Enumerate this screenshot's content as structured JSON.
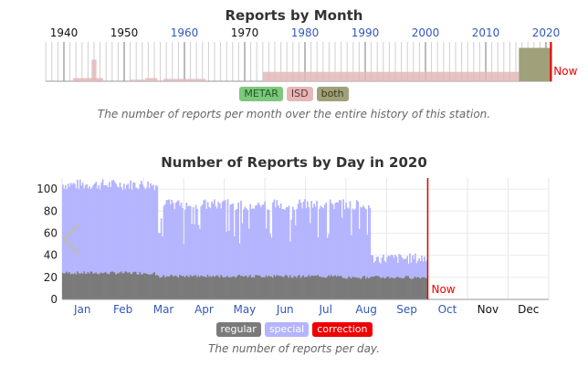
{
  "colors": {
    "metar": "#7ec87e",
    "isd": "#e4b8b8",
    "both": "#a0a07a",
    "regular": "#7a7a7a",
    "special": "#b4b4ff",
    "correction": "#ee0000",
    "now": "#ee0000",
    "month_link": "#3358b8",
    "month_plain": "#111111"
  },
  "chart_data": [
    {
      "type": "area",
      "title": "Reports by Month",
      "xlim": [
        1937,
        2021
      ],
      "year_ticks": [
        {
          "label": "1940",
          "year": 1940,
          "link": false
        },
        {
          "label": "1950",
          "year": 1950,
          "link": false
        },
        {
          "label": "1960",
          "year": 1960,
          "link": true
        },
        {
          "label": "1970",
          "year": 1970,
          "link": false
        },
        {
          "label": "1980",
          "year": 1980,
          "link": true
        },
        {
          "label": "1990",
          "year": 1990,
          "link": true
        },
        {
          "label": "2000",
          "year": 2000,
          "link": true
        },
        {
          "label": "2010",
          "year": 2010,
          "link": true
        },
        {
          "label": "2020",
          "year": 2020,
          "link": true
        }
      ],
      "series": [
        {
          "name": "ISD",
          "segments": [
            {
              "start": 1941.5,
              "end": 1946.5,
              "level": 0.08
            },
            {
              "start": 1944.6,
              "end": 1945.4,
              "level": 0.55
            },
            {
              "start": 1951.0,
              "end": 1953.5,
              "level": 0.04
            },
            {
              "start": 1953.5,
              "end": 1955.5,
              "level": 0.08
            },
            {
              "start": 1956.5,
              "end": 1963.5,
              "level": 0.06
            },
            {
              "start": 1973.0,
              "end": 2015.5,
              "level": 0.24
            }
          ]
        },
        {
          "name": "both",
          "segments": [
            {
              "start": 2015.5,
              "end": 2020.8,
              "level": 0.85
            }
          ]
        }
      ],
      "now": {
        "label": "Now",
        "year": 2020.8
      },
      "legend": [
        "METAR",
        "ISD",
        "both"
      ],
      "caption": "The number of reports per month over the entire history of this station."
    },
    {
      "type": "area",
      "title": "Number of Reports by Day in 2020",
      "ylim": [
        0,
        110
      ],
      "yticks": [
        {
          "label": "0",
          "value": 0
        },
        {
          "label": "20",
          "value": 20
        },
        {
          "label": "40",
          "value": 40
        },
        {
          "label": "60",
          "value": 60
        },
        {
          "label": "80",
          "value": 80
        },
        {
          "label": "100",
          "value": 100
        }
      ],
      "months": [
        {
          "label": "Jan",
          "link": true
        },
        {
          "label": "Feb",
          "link": true
        },
        {
          "label": "Mar",
          "link": true
        },
        {
          "label": "Apr",
          "link": true
        },
        {
          "label": "May",
          "link": true
        },
        {
          "label": "Jun",
          "link": true
        },
        {
          "label": "Jul",
          "link": true
        },
        {
          "label": "Aug",
          "link": true
        },
        {
          "label": "Sep",
          "link": true
        },
        {
          "label": "Oct",
          "link": true
        },
        {
          "label": "Nov",
          "link": false
        },
        {
          "label": "Dec",
          "link": false
        }
      ],
      "series": [
        {
          "name": "regular",
          "segments": [
            {
              "start_day": 0,
              "end_day": 70,
              "value": 24
            },
            {
              "start_day": 70,
              "end_day": 210,
              "value": 21
            },
            {
              "start_day": 210,
              "end_day": 275,
              "value": 20
            }
          ]
        },
        {
          "name": "special",
          "segments": [
            {
              "start_day": 0,
              "end_day": 72,
              "value": 104
            },
            {
              "start_day": 72,
              "end_day": 232,
              "value": 86
            },
            {
              "start_day": 232,
              "end_day": 275,
              "value": 37
            }
          ]
        }
      ],
      "now": {
        "label": "Now",
        "day": 275
      },
      "legend": [
        "regular",
        "special",
        "correction"
      ],
      "caption": "The number of reports per day."
    }
  ]
}
